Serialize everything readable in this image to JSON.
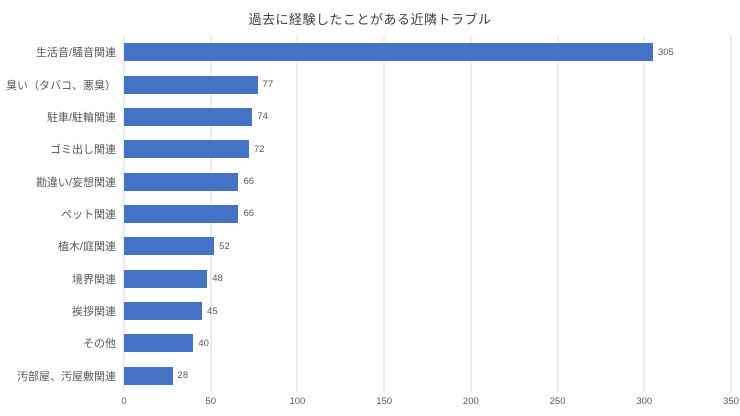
{
  "chart_data": {
    "type": "bar",
    "orientation": "horizontal",
    "title": "過去に経験したことがある近隣トラブル",
    "categories": [
      "生活音/騒音関連",
      "臭い（タバコ、悪臭）",
      "駐車/駐輪関連",
      "ゴミ出し関連",
      "勘違い/妄想関連",
      "ペット関連",
      "植木/庭関連",
      "境界関連",
      "挨拶関連",
      "その他",
      "汚部屋、汚屋敷関連"
    ],
    "values": [
      305,
      77,
      74,
      72,
      66,
      66,
      52,
      48,
      45,
      40,
      28
    ],
    "value_labels": [
      "305",
      "77",
      "74",
      "72",
      "66",
      "66",
      "52",
      "48",
      "45",
      "40",
      "28"
    ],
    "x_ticks": [
      "0",
      "50",
      "100",
      "150",
      "200",
      "250",
      "300",
      "350"
    ],
    "xlim": [
      0,
      350
    ],
    "xlabel": "",
    "ylabel": "",
    "grid": true,
    "legend": false,
    "colors": {
      "bar": "#4472C4",
      "gridline": "#D9D9D9",
      "title_text": "#404040",
      "category_text": "#595959",
      "value_text": "#595959",
      "tick_text": "#595959",
      "background": "#FFFFFF"
    }
  }
}
